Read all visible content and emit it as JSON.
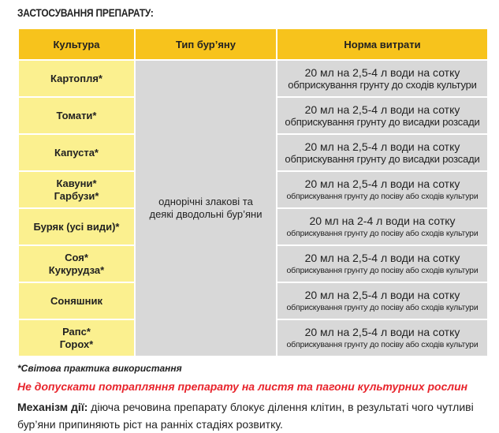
{
  "title": "ЗАСТОСУВАННЯ ПРЕПАРАТУ:",
  "headers": [
    "Культура",
    "Тип бур’яну",
    "Норма витрати"
  ],
  "weed_type": "однорічні злакові та деякі дводольні бур’яни",
  "rows": [
    {
      "crop": [
        "Картопля*"
      ],
      "rate": "20 мл на 2,5-4 л води на сотку",
      "note": "обприскування грунту до сходів культури",
      "small": false
    },
    {
      "crop": [
        "Томати*"
      ],
      "rate": "20 мл на 2,5-4 л води на сотку",
      "note": "обприскування грунту до висадки розсади",
      "small": false
    },
    {
      "crop": [
        "Капуста*"
      ],
      "rate": "20 мл на 2,5-4 л води на сотку",
      "note": "обприскування грунту до висадки розсади",
      "small": false
    },
    {
      "crop": [
        "Кавуни*",
        "Гарбузи*"
      ],
      "rate": "20 мл на 2,5-4 л води на сотку",
      "note": "обприскування грунту до посіву або сходів культури",
      "small": true
    },
    {
      "crop": [
        "Буряк (усі види)*"
      ],
      "rate": "20 мл на 2-4 л води на сотку",
      "note": "обприскування грунту до посіву або сходів культури",
      "small": true
    },
    {
      "crop": [
        "Соя*",
        "Кукурудза*"
      ],
      "rate": "20 мл на 2,5-4 л води на сотку",
      "note": "обприскування грунту до посіву або сходів культури",
      "small": true
    },
    {
      "crop": [
        "Соняшник"
      ],
      "rate": "20 мл на 2,5-4 л води на сотку",
      "note": "обприскування грунту до посіву або сходів культури",
      "small": true
    },
    {
      "crop": [
        "Рапс*",
        "Горох*"
      ],
      "rate": "20 мл на 2,5-4 л води на сотку",
      "note": "обприскування грунту до посіву або сходів культури",
      "small": true
    }
  ],
  "footnote": "*Світова практика використання",
  "warning": "Не допускати потрапляння препарату на листя та пагони культурних рослин",
  "mechanism_label": "Механізм дії:",
  "mechanism_text": " діюча речовина препарату блокує ділення клітин, в результаті чого чутливі бур’яни припиняють ріст на ранніх стадіях розвитку.",
  "colors": {
    "header": "#f7c31c",
    "crop_cell": "#fbf08f",
    "cell": "#d8d8d8",
    "warning": "#e8242c"
  }
}
